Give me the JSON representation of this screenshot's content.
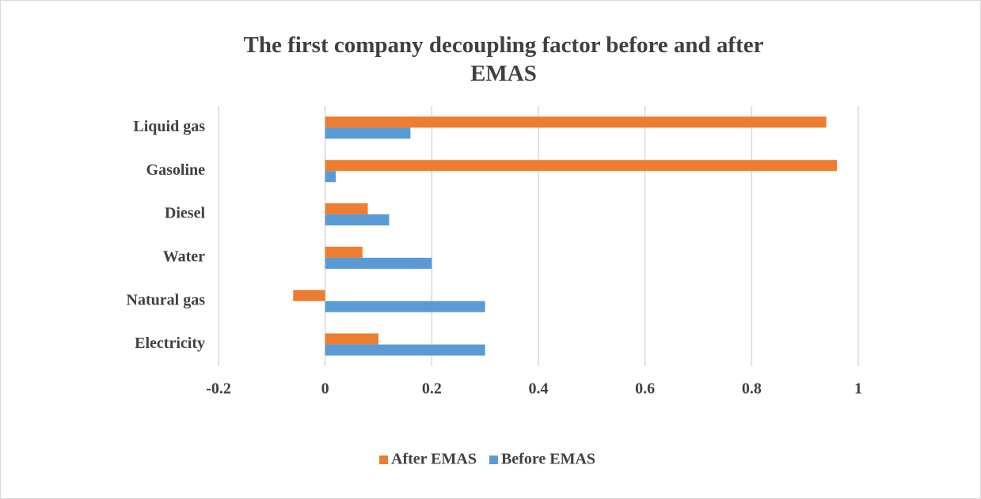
{
  "chart_data": {
    "type": "hbar",
    "title": "The first company decoupling factor before and after EMAS",
    "categories": [
      "Liquid gas",
      "Gasoline",
      "Diesel",
      "Water",
      "Natural gas",
      "Electricity"
    ],
    "series": [
      {
        "name": "After EMAS",
        "color": "#ed7d31",
        "values": [
          0.94,
          0.96,
          0.08,
          0.07,
          -0.06,
          0.1
        ]
      },
      {
        "name": "Before EMAS",
        "color": "#5b9bd5",
        "values": [
          0.16,
          0.02,
          0.12,
          0.2,
          0.3,
          0.3
        ]
      }
    ],
    "xlim": [
      -0.2,
      1
    ],
    "xticks": [
      -0.2,
      0,
      0.2,
      0.4,
      0.6,
      0.8,
      1
    ],
    "grid": true,
    "legend": "bottom"
  }
}
